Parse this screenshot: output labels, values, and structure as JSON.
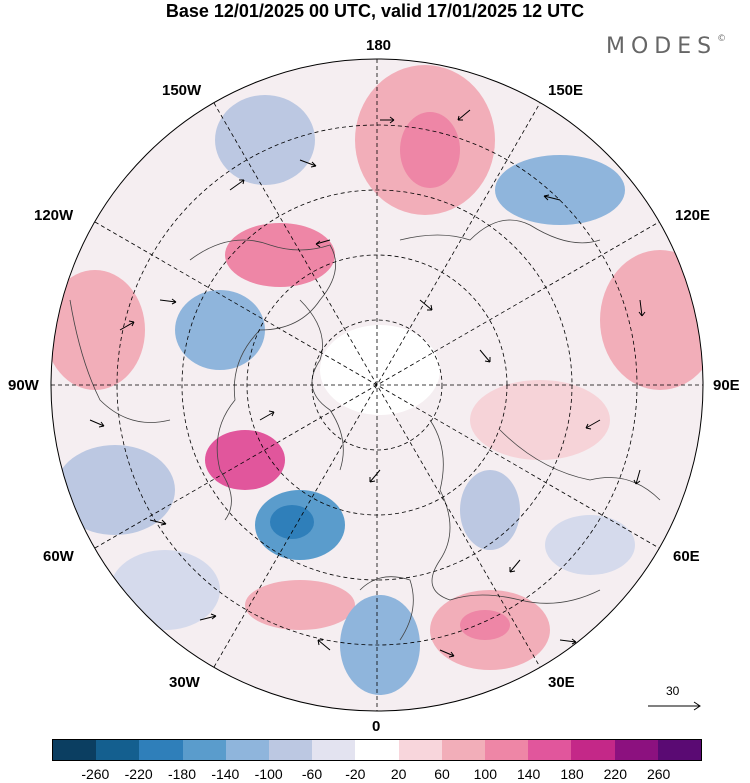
{
  "title": "Base 12/01/2025 00 UTC, valid 17/01/2025 12 UTC",
  "brand": "MODES",
  "brand_mark": "©",
  "longitude_labels": {
    "top": "180",
    "bottom": "0",
    "left": "90W",
    "right": "90E",
    "upper_left": "150W",
    "upper_left2": "120W",
    "lower_left": "60W",
    "lower_left2": "30W",
    "upper_right": "150E",
    "upper_right2": "120E",
    "lower_right": "60E",
    "lower_right2": "30E"
  },
  "reference_vector_value": "30",
  "colorbar": {
    "colors": [
      "#0b3e61",
      "#145f8f",
      "#2f7fba",
      "#5a9ccc",
      "#8fb5dc",
      "#bcc8e2",
      "#e3e3f0",
      "#ffffff",
      "#f8d6dc",
      "#f2aeb9",
      "#ee86a6",
      "#e1569c",
      "#c42888",
      "#8c117f",
      "#5a0a73"
    ],
    "ticks": [
      "-260",
      "-220",
      "-180",
      "-140",
      "-100",
      "-60",
      "-20",
      "20",
      "60",
      "100",
      "140",
      "180",
      "220",
      "260"
    ]
  },
  "anomaly_colors": {
    "neg_strong": "#2f7fba",
    "neg_mid": "#8fb5dc",
    "neg_weak": "#d5daec",
    "pos_weak": "#f6d3d8",
    "pos_mid": "#f2aeb9",
    "pos_strong": "#e1569c"
  }
}
